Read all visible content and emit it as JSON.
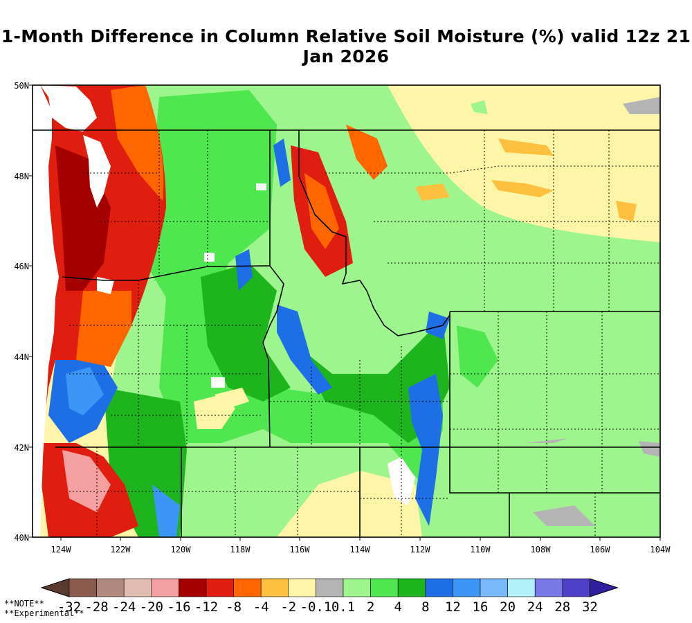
{
  "title": "1-Month Difference in Column Relative Soil Moisture (%) valid 12z 21 Jan 2026",
  "lat_labels": [
    "50N",
    "48N",
    "46N",
    "44N",
    "42N",
    "40N"
  ],
  "lon_labels": [
    "124W",
    "122W",
    "120W",
    "118W",
    "116W",
    "114W",
    "112W",
    "110W",
    "108W",
    "106W",
    "104W"
  ],
  "colorbar": {
    "colors": [
      "#5a3a2e",
      "#8c5a4c",
      "#b08a7e",
      "#e1bdb1",
      "#f4a0a0",
      "#a50000",
      "#e01e10",
      "#ff6600",
      "#ffc040",
      "#fff5a8",
      "#b4b4b4",
      "#9ef58e",
      "#50e650",
      "#1eb41e",
      "#1e6ee6",
      "#3c96f5",
      "#78b9fa",
      "#b4f0fa",
      "#7878e6",
      "#5040c8",
      "#3020a0"
    ],
    "labels": [
      "-32",
      "-28",
      "-24",
      "-20",
      "-16",
      "-12",
      "-8",
      "-4",
      "-2",
      "-0.1",
      "0.1",
      "2",
      "4",
      "8",
      "12",
      "16",
      "20",
      "24",
      "28",
      "32"
    ]
  },
  "notes": {
    "note": "**NOTE**",
    "experimental": "**Experimental**"
  },
  "palette": {
    "ocean": "#ffffff",
    "dry_strong": "#e01e10",
    "dry_very": "#a50000",
    "dry_mod": "#ff6600",
    "neutral": "#fff5a8",
    "gray": "#b4b4b4",
    "wet_light": "#9ef58e",
    "wet_mid": "#50e650",
    "wet_green": "#1eb41e",
    "wet_blue": "#1e6ee6",
    "wet_blue2": "#3c96f5"
  }
}
